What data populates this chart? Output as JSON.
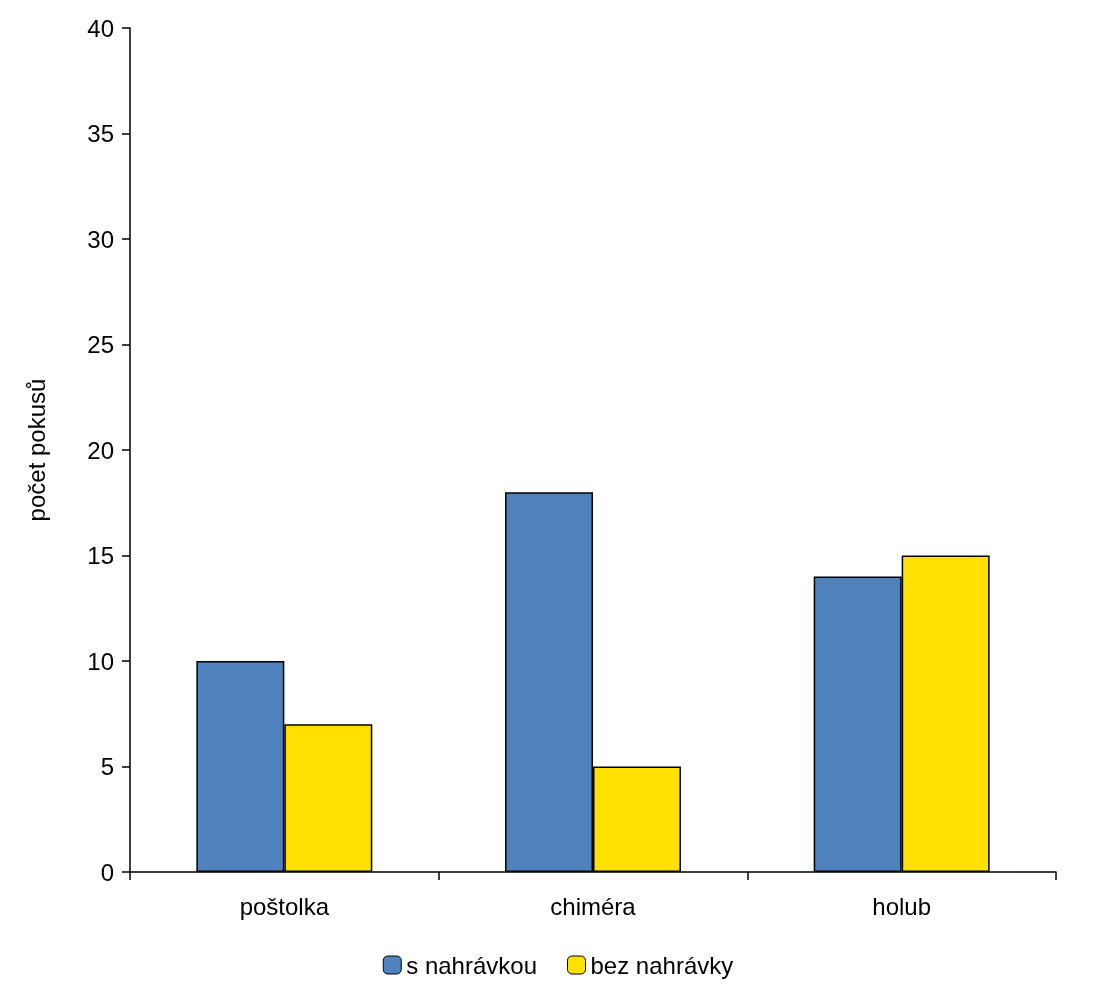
{
  "chart_data": {
    "type": "bar",
    "ylabel": "počet pokusů",
    "categories": [
      "poštolka",
      "chiméra",
      "holub"
    ],
    "series": [
      {
        "name": "s nahrávkou",
        "color": "#4f81bd",
        "values": [
          10,
          18,
          14
        ]
      },
      {
        "name": "bez nahrávky",
        "color": "#ffe000",
        "values": [
          7,
          5,
          15
        ]
      }
    ],
    "ylim": [
      0,
      40
    ],
    "yticks": [
      0,
      5,
      10,
      15,
      20,
      25,
      30,
      35,
      40
    ],
    "grid": false,
    "legend": "bottom"
  }
}
